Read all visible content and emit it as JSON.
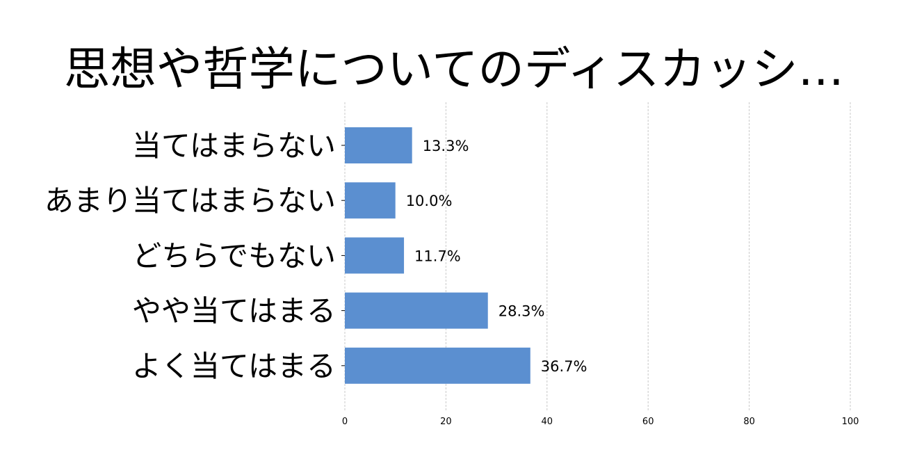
{
  "chart_data": {
    "type": "bar",
    "orientation": "horizontal",
    "title": "思想や哲学についてのディスカッシ…",
    "categories": [
      "当てはまらない",
      "あまり当てはまらない",
      "どちらでもない",
      "やや当てはまる",
      "よく当てはまる"
    ],
    "values": [
      13.3,
      10.0,
      11.7,
      28.3,
      36.7
    ],
    "value_labels": [
      "13.3%",
      "10.0%",
      "11.7%",
      "28.3%",
      "36.7%"
    ],
    "xlim": [
      0,
      100
    ],
    "x_ticks": [
      "0",
      "20",
      "40",
      "60",
      "80",
      "100"
    ],
    "xlabel": "",
    "ylabel": "",
    "bar_color": "#5b8fd0",
    "grid": "vertical dashed",
    "legend": "none"
  }
}
